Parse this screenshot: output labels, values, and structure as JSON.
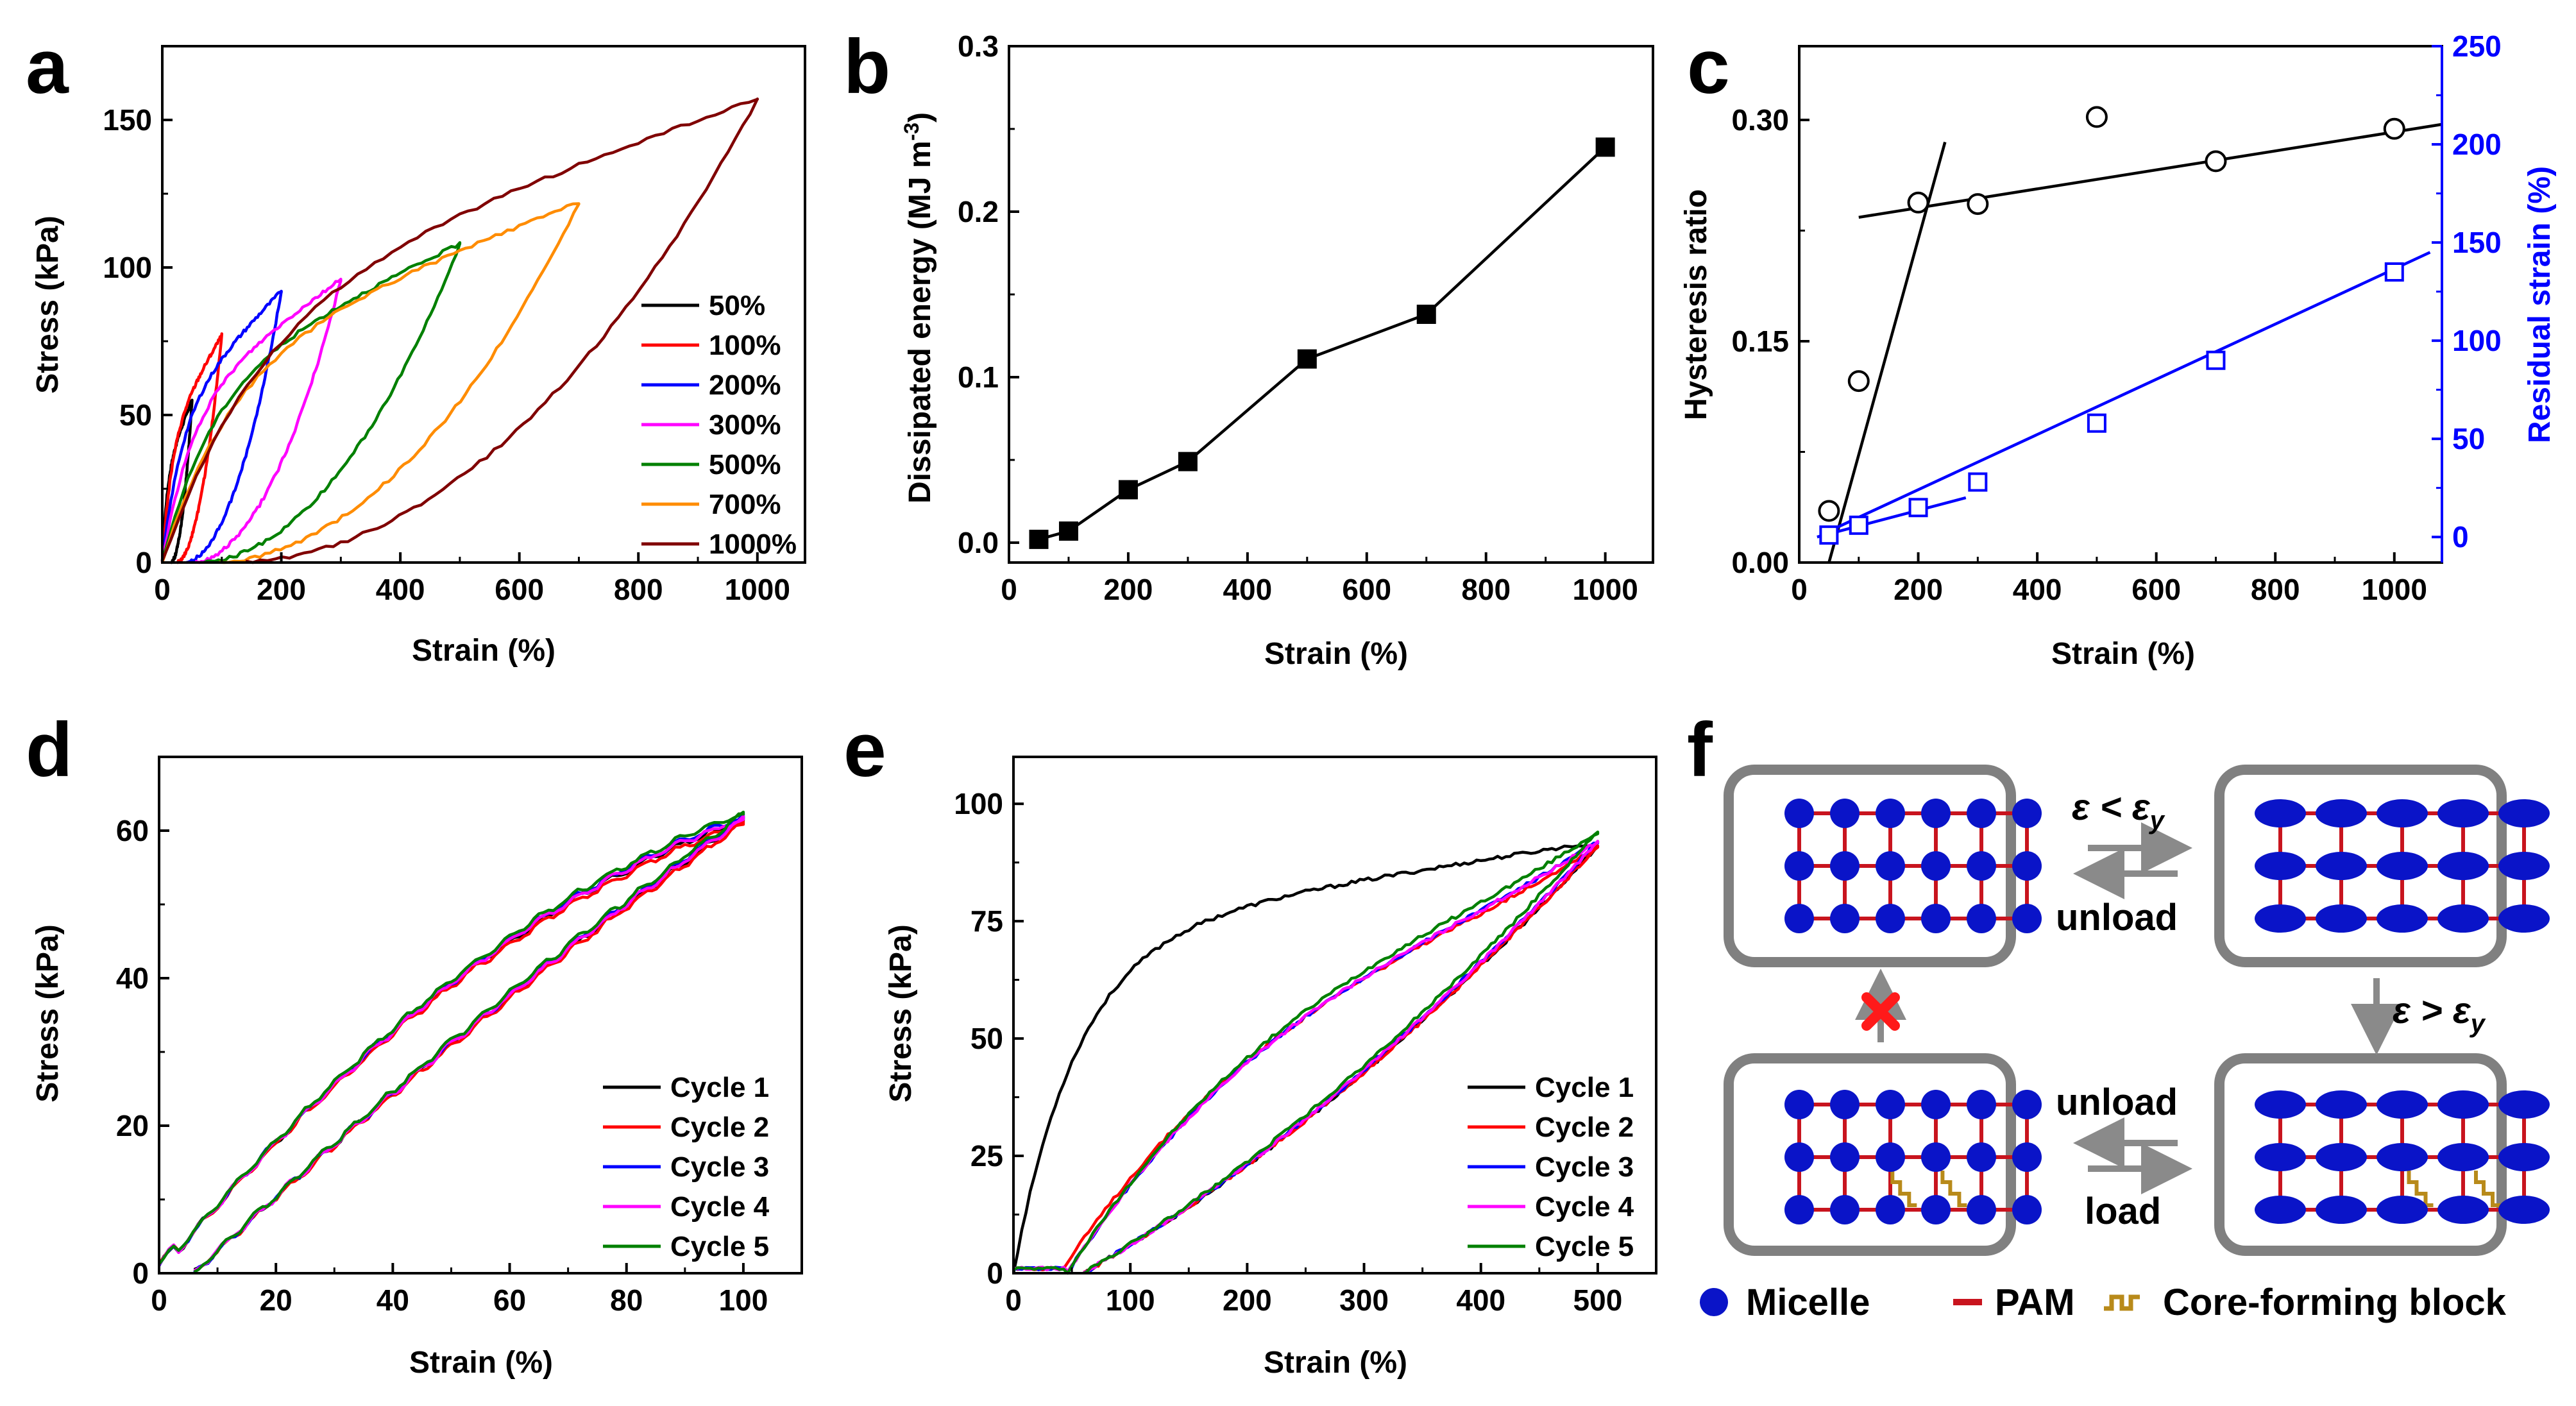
{
  "figure": {
    "panels": [
      "a",
      "b",
      "c",
      "d",
      "e",
      "f"
    ]
  },
  "chart_data": [
    {
      "id": "a",
      "type": "line",
      "xlabel": "Strain (%)",
      "ylabel": "Stress (kPa)",
      "xlim": [
        0,
        1080
      ],
      "ylim": [
        0,
        175
      ],
      "xticks": [
        "0",
        "200",
        "400",
        "600",
        "800",
        "1000"
      ],
      "yticks": [
        "0",
        "50",
        "100",
        "150"
      ],
      "legend_position": "bottom-right",
      "series": [
        {
          "name": "50%",
          "color": "#000000",
          "max_strain": 50,
          "peak": 55,
          "residual": 15
        },
        {
          "name": "100%",
          "color": "#ff0000",
          "max_strain": 100,
          "peak": 77,
          "residual": 25
        },
        {
          "name": "200%",
          "color": "#0000ff",
          "max_strain": 200,
          "peak": 92,
          "residual": 40
        },
        {
          "name": "300%",
          "color": "#ff00ff",
          "max_strain": 300,
          "peak": 96,
          "residual": 55
        },
        {
          "name": "500%",
          "color": "#008000",
          "max_strain": 500,
          "peak": 108,
          "residual": 70
        },
        {
          "name": "700%",
          "color": "#ff8c00",
          "max_strain": 700,
          "peak": 122,
          "residual": 95
        },
        {
          "name": "1000%",
          "color": "#800000",
          "max_strain": 1000,
          "peak": 157,
          "residual": 140
        }
      ]
    },
    {
      "id": "b",
      "type": "line",
      "xlabel": "Strain (%)",
      "ylabel": "Dissipated energy (MJ m-3)",
      "xlim": [
        0,
        1080
      ],
      "ylim": [
        -0.012,
        0.3
      ],
      "xticks": [
        "0",
        "200",
        "400",
        "600",
        "800",
        "1000"
      ],
      "yticks": [
        "0.0",
        "0.1",
        "0.2",
        "0.3"
      ],
      "series": [
        {
          "name": "",
          "x": [
            50,
            100,
            200,
            300,
            500,
            700,
            1000
          ],
          "y": [
            0.002,
            0.007,
            0.032,
            0.049,
            0.111,
            0.138,
            0.239
          ]
        }
      ]
    },
    {
      "id": "c",
      "type": "scatter",
      "xlabel": "Strain (%)",
      "ylabel": "Hysteresis ratio",
      "y2label": "Residual strain (%)",
      "xlim": [
        0,
        1080
      ],
      "ylim": [
        0,
        0.35
      ],
      "y2lim": [
        -13,
        250
      ],
      "xticks": [
        "0",
        "200",
        "400",
        "600",
        "800",
        "1000"
      ],
      "yticks": [
        "0.00",
        "0.15",
        "0.30"
      ],
      "y2ticks": [
        "0",
        "50",
        "100",
        "150",
        "200",
        "250"
      ],
      "series": [
        {
          "name": "",
          "axis": "left",
          "x": [
            50,
            100,
            200,
            300,
            500,
            700,
            1000
          ],
          "y": [
            0.035,
            0.123,
            0.244,
            0.243,
            0.302,
            0.272,
            0.294
          ]
        },
        {
          "name": "",
          "axis": "right",
          "x": [
            50,
            100,
            200,
            300,
            500,
            700,
            1000
          ],
          "y": [
            1,
            6,
            15,
            28,
            58,
            90,
            135
          ]
        }
      ],
      "fit_lines": [
        {
          "axis": "left",
          "x": [
            50,
            245
          ],
          "y": [
            0.0,
            0.285
          ]
        },
        {
          "axis": "left",
          "x": [
            100,
            1080
          ],
          "y": [
            0.234,
            0.297
          ]
        },
        {
          "axis": "right",
          "x": [
            30,
            280
          ],
          "y": [
            0,
            20
          ]
        },
        {
          "axis": "right",
          "x": [
            50,
            1060
          ],
          "y": [
            3,
            145
          ]
        }
      ]
    },
    {
      "id": "d",
      "type": "line",
      "xlabel": "Strain (%)",
      "ylabel": "Stress (kPa)",
      "xlim": [
        0,
        110
      ],
      "ylim": [
        0,
        70
      ],
      "xticks": [
        "0",
        "20",
        "40",
        "60",
        "80",
        "100"
      ],
      "yticks": [
        "0",
        "20",
        "40",
        "60"
      ],
      "legend_position": "bottom-right",
      "series": [
        {
          "name": "Cycle 1",
          "color": "#000000",
          "peak": 61.5
        },
        {
          "name": "Cycle 2",
          "color": "#ff0000",
          "peak": 61.0
        },
        {
          "name": "Cycle 3",
          "color": "#0000ff",
          "peak": 61.8
        },
        {
          "name": "Cycle 4",
          "color": "#ff00ff",
          "peak": 61.6
        },
        {
          "name": "Cycle 5",
          "color": "#008000",
          "peak": 62.3
        }
      ]
    },
    {
      "id": "e",
      "type": "line",
      "xlabel": "Strain (%)",
      "ylabel": "Stress (kPa)",
      "xlim": [
        0,
        550
      ],
      "ylim": [
        0,
        110
      ],
      "xticks": [
        "0",
        "100",
        "200",
        "300",
        "400",
        "500"
      ],
      "yticks": [
        "0",
        "25",
        "50",
        "75",
        "100"
      ],
      "legend_position": "bottom-right",
      "series": [
        {
          "name": "Cycle 1",
          "color": "#000000",
          "peak": 91
        },
        {
          "name": "Cycle 2",
          "color": "#ff0000",
          "peak": 91
        },
        {
          "name": "Cycle 3",
          "color": "#0000ff",
          "peak": 92
        },
        {
          "name": "Cycle 4",
          "color": "#ff00ff",
          "peak": 92
        },
        {
          "name": "Cycle 5",
          "color": "#008000",
          "peak": 94
        }
      ]
    }
  ],
  "schematic": {
    "label_top": "ε < ε",
    "label_top_sub": "y",
    "label_right": "ε > ε",
    "label_right_sub": "y",
    "unload_1": "unload",
    "unload_2": "unload",
    "load": "load",
    "legend_micelle": "Micelle",
    "legend_pam": "PAM",
    "legend_core": "Core-forming block",
    "colors": {
      "micelle": "#0a14c8",
      "pam": "#c8141e",
      "core": "#b88a1a",
      "frame": "#808080",
      "arrow": "#8a8a8a",
      "cross": "#ff0000"
    }
  }
}
